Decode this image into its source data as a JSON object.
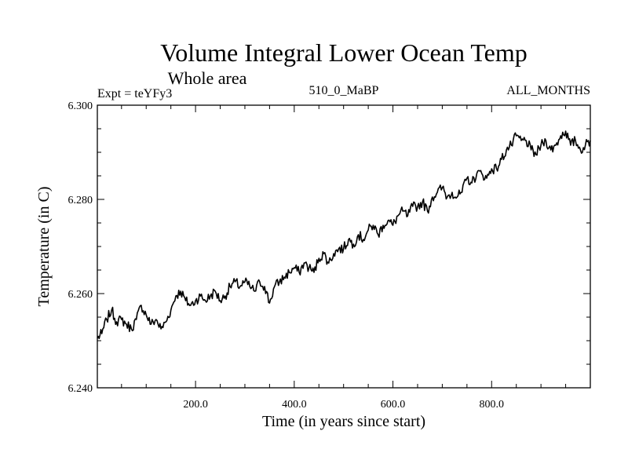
{
  "chart_data": {
    "type": "line",
    "title": "Volume Integral Lower Ocean Temp",
    "subtitle": "Whole area",
    "annotations": {
      "left": "Expt = teYFy3",
      "center": "510_0_MaBP",
      "right": "ALL_MONTHS"
    },
    "xlabel": "Time (in years since start)",
    "ylabel": "Temperature (in C)",
    "xlim": [
      1,
      1000
    ],
    "ylim": [
      6.24,
      6.3
    ],
    "x_ticks": [
      200,
      400,
      600,
      800
    ],
    "x_tick_labels": [
      "200.0",
      "400.0",
      "600.0",
      "800.0"
    ],
    "y_ticks": [
      6.24,
      6.26,
      6.28,
      6.3
    ],
    "y_tick_labels": [
      "6.240",
      "6.260",
      "6.280",
      "6.300"
    ],
    "line_color": "#000000",
    "series": [
      {
        "name": "Volume Integral Lower Ocean Temp",
        "x": [
          1,
          10,
          20,
          30,
          40,
          50,
          60,
          70,
          80,
          90,
          100,
          110,
          120,
          130,
          140,
          150,
          160,
          170,
          180,
          190,
          200,
          210,
          220,
          230,
          240,
          250,
          260,
          270,
          280,
          290,
          300,
          310,
          320,
          330,
          340,
          350,
          360,
          370,
          380,
          390,
          400,
          410,
          420,
          430,
          440,
          450,
          460,
          470,
          480,
          490,
          500,
          510,
          520,
          530,
          540,
          550,
          560,
          570,
          580,
          590,
          600,
          610,
          620,
          630,
          640,
          650,
          660,
          670,
          680,
          690,
          700,
          710,
          720,
          730,
          740,
          750,
          760,
          770,
          780,
          790,
          800,
          810,
          820,
          830,
          840,
          850,
          860,
          870,
          880,
          890,
          900,
          910,
          920,
          930,
          940,
          950,
          960,
          970,
          980,
          990,
          1000
        ],
        "values": [
          6.2505,
          6.2515,
          6.2545,
          6.2565,
          6.254,
          6.2545,
          6.2535,
          6.2525,
          6.2545,
          6.2575,
          6.2555,
          6.2535,
          6.2545,
          6.2525,
          6.254,
          6.2565,
          6.2595,
          6.2605,
          6.2585,
          6.2575,
          6.2585,
          6.2595,
          6.2585,
          6.2595,
          6.2605,
          6.2585,
          6.2595,
          6.2615,
          6.2625,
          6.2615,
          6.2625,
          6.2615,
          6.2605,
          6.2625,
          6.2615,
          6.258,
          6.2615,
          6.2625,
          6.2635,
          6.2645,
          6.2655,
          6.2645,
          6.2665,
          6.2655,
          6.2645,
          6.2675,
          6.2685,
          6.2665,
          6.2685,
          6.2695,
          6.2695,
          6.2715,
          6.2705,
          6.2725,
          6.2715,
          6.2735,
          6.2745,
          6.2725,
          6.2745,
          6.2755,
          6.2745,
          6.2765,
          6.2775,
          6.2765,
          6.2785,
          6.2785,
          6.2795,
          6.2775,
          6.2805,
          6.2815,
          6.2825,
          6.2805,
          6.2815,
          6.2805,
          6.2815,
          6.2845,
          6.2835,
          6.2855,
          6.2855,
          6.2845,
          6.2865,
          6.2865,
          6.2885,
          6.2905,
          6.2915,
          6.2935,
          6.2925,
          6.2925,
          6.2905,
          6.2895,
          6.2915,
          6.2925,
          6.2905,
          6.2915,
          6.2935,
          6.2945,
          6.2915,
          6.2925,
          6.2905,
          6.2915,
          6.2925
        ]
      }
    ]
  }
}
